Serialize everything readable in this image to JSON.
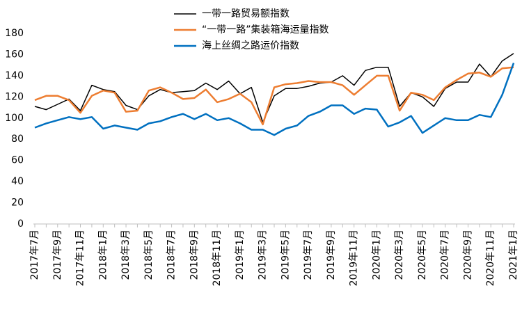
{
  "chart_data": {
    "type": "line",
    "categories": [
      "2017年7月",
      null,
      "2017年9月",
      null,
      "2017年11月",
      null,
      "2018年1月",
      null,
      "2018年3月",
      null,
      "2018年5月",
      null,
      "2018年7月",
      null,
      "2018年9月",
      null,
      "2018年11月",
      null,
      "2019年1月",
      null,
      "2019年3月",
      null,
      "2019年5月",
      null,
      "2019年7月",
      null,
      "2019年9月",
      null,
      "2019年11月",
      null,
      "2020年1月",
      null,
      "2020年3月",
      null,
      "2020年5月",
      null,
      "2020年7月",
      null,
      "2020年9月",
      null,
      "2020年11月",
      null,
      "2021年1月"
    ],
    "series": [
      {
        "name": "一带一路贸易额指数",
        "color": "#000000",
        "values": [
          111,
          108,
          113,
          118,
          107,
          131,
          127,
          125,
          112,
          108,
          121,
          127,
          124,
          125,
          126,
          133,
          127,
          135,
          123,
          129,
          96,
          121,
          128,
          128,
          130,
          133,
          134,
          140,
          131,
          145,
          148,
          148,
          111,
          124,
          120,
          111,
          128,
          134,
          134,
          151,
          139,
          154,
          161
        ]
      },
      {
        "name": "“一带一路”集装箱海运量指数",
        "color": "#ed7d31",
        "values": [
          117,
          121,
          121,
          117,
          105,
          121,
          126,
          124,
          106,
          107,
          126,
          129,
          124,
          118,
          119,
          127,
          115,
          118,
          123,
          115,
          94,
          129,
          132,
          133,
          135,
          134,
          134,
          131,
          122,
          131,
          140,
          140,
          107,
          124,
          122,
          117,
          129,
          136,
          142,
          143,
          139,
          147,
          148
        ]
      },
      {
        "name": "海上丝绸之路运价指数",
        "color": "#0070c0",
        "values": [
          91,
          95,
          98,
          101,
          99,
          101,
          90,
          93,
          91,
          89,
          95,
          97,
          101,
          104,
          99,
          104,
          98,
          100,
          95,
          89,
          89,
          84,
          90,
          93,
          102,
          106,
          112,
          112,
          104,
          109,
          108,
          92,
          96,
          102,
          86,
          93,
          100,
          98,
          98,
          103,
          101,
          122,
          152
        ]
      }
    ],
    "ylim": [
      0,
      180
    ],
    "yticks": [
      0,
      20,
      40,
      60,
      80,
      100,
      120,
      140,
      160,
      180
    ],
    "grid": false
  }
}
